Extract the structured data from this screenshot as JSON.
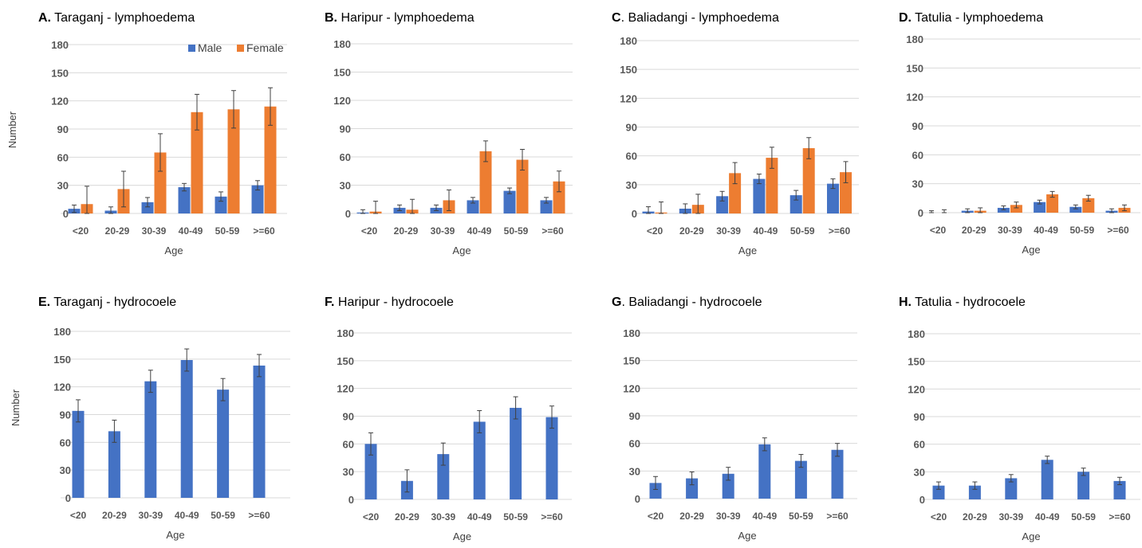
{
  "colors": {
    "male": "#4472c4",
    "female": "#ed7d31"
  },
  "legend": {
    "male": "Male",
    "female": "Female"
  },
  "chart_data": [
    {
      "type": "bar",
      "title_letter": "A.",
      "title": "Taraganj - lymphoedema",
      "xlabel": "Age",
      "ylabel": "Number",
      "ylim": [
        0,
        180
      ],
      "yticks": [
        0,
        30,
        60,
        90,
        120,
        150,
        180
      ],
      "grid": true,
      "legend_position": "top-right",
      "categories": [
        "<20",
        "20-29",
        "30-39",
        "40-49",
        "50-59",
        ">=60"
      ],
      "series": [
        {
          "name": "Male",
          "values": [
            5,
            3,
            12,
            28,
            18,
            30
          ],
          "error": [
            4,
            4,
            5,
            4,
            5,
            5
          ]
        },
        {
          "name": "Female",
          "values": [
            10,
            26,
            65,
            108,
            111,
            114
          ],
          "error": [
            19,
            19,
            20,
            19,
            20,
            20
          ]
        }
      ]
    },
    {
      "type": "bar",
      "title_letter": "B.",
      "title": "Haripur - lymphoedema",
      "xlabel": "Age",
      "ylabel": "",
      "ylim": [
        0,
        180
      ],
      "yticks": [
        0,
        30,
        60,
        90,
        120,
        150,
        180
      ],
      "grid": true,
      "categories": [
        "<20",
        "20-29",
        "30-39",
        "40-49",
        "50-59",
        ">=60"
      ],
      "series": [
        {
          "name": "Male",
          "values": [
            1,
            6,
            6,
            14,
            24,
            14
          ],
          "error": [
            3,
            3,
            3,
            3,
            3,
            3
          ]
        },
        {
          "name": "Female",
          "values": [
            2,
            4,
            14,
            66,
            57,
            34
          ],
          "error": [
            11,
            11,
            11,
            11,
            11,
            11
          ]
        }
      ]
    },
    {
      "type": "bar",
      "title_letter": "C",
      "title": ". Baliadangi - lymphoedema",
      "xlabel": "Age",
      "ylabel": "",
      "ylim": [
        0,
        180
      ],
      "yticks": [
        0,
        30,
        60,
        90,
        120,
        150,
        180
      ],
      "grid": true,
      "categories": [
        "<20",
        "20-29",
        "30-39",
        "40-49",
        "50-59",
        ">=60"
      ],
      "series": [
        {
          "name": "Male",
          "values": [
            2,
            5,
            18,
            36,
            19,
            31
          ],
          "error": [
            5,
            5,
            5,
            5,
            5,
            5
          ]
        },
        {
          "name": "Female",
          "values": [
            1,
            9,
            42,
            58,
            68,
            43
          ],
          "error": [
            11,
            11,
            11,
            11,
            11,
            11
          ]
        }
      ]
    },
    {
      "type": "bar",
      "title_letter": "D.",
      "title": "Tatulia - lymphoedema",
      "xlabel": "Age",
      "ylabel": "",
      "ylim": [
        0,
        180
      ],
      "yticks": [
        0,
        30,
        60,
        90,
        120,
        150,
        180
      ],
      "grid": true,
      "categories": [
        "<20",
        "20-29",
        "30-39",
        "40-49",
        "50-59",
        ">=60"
      ],
      "series": [
        {
          "name": "Male",
          "values": [
            0,
            2,
            5,
            11,
            6,
            2
          ],
          "error": [
            2,
            2,
            2,
            2,
            2,
            2
          ]
        },
        {
          "name": "Female",
          "values": [
            0,
            2,
            8,
            19,
            15,
            5
          ],
          "error": [
            3,
            3,
            3,
            3,
            3,
            3
          ]
        }
      ]
    },
    {
      "type": "bar",
      "title_letter": "E.",
      "title": "Taraganj - hydrocoele",
      "xlabel": "Age",
      "ylabel": "Number",
      "ylim": [
        0,
        180
      ],
      "yticks": [
        0,
        30,
        60,
        90,
        120,
        150,
        180
      ],
      "grid": true,
      "categories": [
        "<20",
        "20-29",
        "30-39",
        "40-49",
        "50-59",
        ">=60"
      ],
      "series": [
        {
          "name": "Male",
          "values": [
            94,
            72,
            126,
            149,
            117,
            143
          ],
          "error": [
            12,
            12,
            12,
            12,
            12,
            12
          ]
        }
      ]
    },
    {
      "type": "bar",
      "title_letter": "F.",
      "title": "Haripur - hydrocoele",
      "xlabel": "Age",
      "ylabel": "",
      "ylim": [
        0,
        180
      ],
      "yticks": [
        0,
        30,
        60,
        90,
        120,
        150,
        180
      ],
      "grid": true,
      "categories": [
        "<20",
        "20-29",
        "30-39",
        "40-49",
        "50-59",
        ">=60"
      ],
      "series": [
        {
          "name": "Male",
          "values": [
            60,
            20,
            49,
            84,
            99,
            89
          ],
          "error": [
            12,
            12,
            12,
            12,
            12,
            12
          ]
        }
      ]
    },
    {
      "type": "bar",
      "title_letter": "G",
      "title": ". Baliadangi - hydrocoele",
      "xlabel": "Age",
      "ylabel": "",
      "ylim": [
        0,
        180
      ],
      "yticks": [
        0,
        30,
        60,
        90,
        120,
        150,
        180
      ],
      "grid": true,
      "categories": [
        "<20",
        "20-29",
        "30-39",
        "40-49",
        "50-59",
        ">=60"
      ],
      "series": [
        {
          "name": "Male",
          "values": [
            17,
            22,
            27,
            59,
            41,
            53
          ],
          "error": [
            7,
            7,
            7,
            7,
            7,
            7
          ]
        }
      ]
    },
    {
      "type": "bar",
      "title_letter": "H.",
      "title": "Tatulia - hydrocoele",
      "xlabel": "Age",
      "ylabel": "",
      "ylim": [
        0,
        180
      ],
      "yticks": [
        0,
        30,
        60,
        90,
        120,
        150,
        180
      ],
      "grid": true,
      "categories": [
        "<20",
        "20-29",
        "30-39",
        "40-49",
        "50-59",
        ">=60"
      ],
      "series": [
        {
          "name": "Male",
          "values": [
            15,
            15,
            23,
            43,
            30,
            20
          ],
          "error": [
            4,
            4,
            4,
            4,
            4,
            4
          ]
        }
      ]
    }
  ]
}
